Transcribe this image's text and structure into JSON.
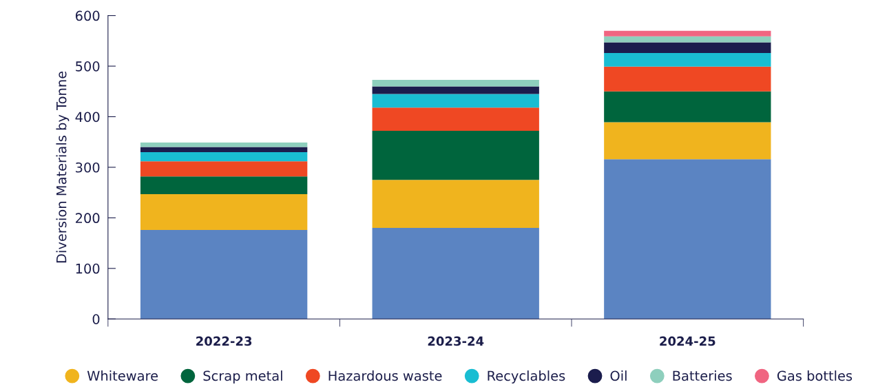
{
  "chart_data": {
    "type": "bar",
    "stacked": true,
    "ylabel": "Diversion Materials by Tonne",
    "categories": [
      "2022-23",
      "2023-24",
      "2024-25"
    ],
    "series": [
      {
        "color": "#5b84c2",
        "values": [
          176,
          180,
          316
        ]
      },
      {
        "name": "Whiteware",
        "color": "#f0b41e",
        "values": [
          71,
          95,
          73
        ]
      },
      {
        "name": "Scrap metal",
        "color": "#00653d",
        "values": [
          35,
          97,
          61
        ]
      },
      {
        "name": "Hazardous waste",
        "color": "#ef4823",
        "values": [
          30,
          46,
          49
        ]
      },
      {
        "name": "Recyclables",
        "color": "#19bdd2",
        "values": [
          18,
          27,
          27
        ]
      },
      {
        "name": "Oil",
        "color": "#1b1d4d",
        "values": [
          10,
          15,
          21
        ]
      },
      {
        "name": "Batteries",
        "color": "#8ecfbd",
        "values": [
          9,
          13,
          12
        ]
      },
      {
        "name": "Gas bottles",
        "color": "#f06581",
        "values": [
          0,
          0,
          11
        ]
      }
    ],
    "ylim": [
      0,
      600
    ],
    "yticks": [
      0,
      100,
      200,
      300,
      400,
      500,
      600
    ],
    "grid": false,
    "legend": "bottom"
  }
}
